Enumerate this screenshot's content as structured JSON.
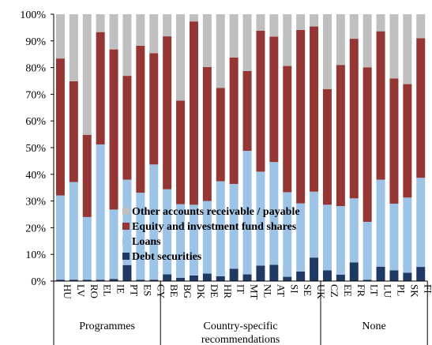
{
  "chart_data": {
    "type": "bar",
    "stacked": true,
    "percent": true,
    "ylim": [
      0,
      100
    ],
    "yticks": [
      "0%",
      "10%",
      "20%",
      "30%",
      "40%",
      "50%",
      "60%",
      "70%",
      "80%",
      "90%",
      "100%"
    ],
    "categories": [
      "HU",
      "LV",
      "RO",
      "EL",
      "IE",
      "PT",
      "ES",
      "CY",
      "BE",
      "BG",
      "DK",
      "DE",
      "HR",
      "IT",
      "MT",
      "NL",
      "AT",
      "SI",
      "SE",
      "UK",
      "CZ",
      "EE",
      "FR",
      "LT",
      "LU",
      "PL",
      "SK",
      "FI"
    ],
    "groups": [
      {
        "label": "Programmes",
        "start": 0,
        "count": 8
      },
      {
        "label": "Country-specific recommendations",
        "lines": [
          "Country-specific",
          "recommendations"
        ],
        "start": 8,
        "count": 12
      },
      {
        "label": "None",
        "start": 20,
        "count": 8
      }
    ],
    "series": [
      {
        "name": "Debt securities",
        "color": "#1f3864",
        "values": [
          0.5,
          0.5,
          0.5,
          0.5,
          0.8,
          6,
          0.5,
          0.5,
          2.5,
          1.2,
          2.1,
          2.8,
          1.8,
          4.6,
          2.5,
          5.8,
          6.1,
          1.6,
          3.6,
          8.8,
          4,
          2.4,
          7,
          0.5,
          5.4,
          4,
          3.1,
          5.3
        ]
      },
      {
        "name": "Loans",
        "color": "#9dc3e6",
        "values": [
          31.6,
          36.6,
          23.5,
          50.7,
          26,
          32,
          32.6,
          43.2,
          31.9,
          27.6,
          26.5,
          27.2,
          35.6,
          31.8,
          46.3,
          35.2,
          38.5,
          31.7,
          25.5,
          24.7,
          24.6,
          25.7,
          24,
          21.7,
          32.6,
          25,
          28.2,
          33.4
        ]
      },
      {
        "name": "Equity and investment fund shares",
        "color": "#943634",
        "values": [
          51.3,
          37.8,
          30.8,
          42.1,
          60,
          38.9,
          55.1,
          41.7,
          57.3,
          38.8,
          68.7,
          50.2,
          35,
          47.4,
          29.9,
          52.8,
          47,
          47.3,
          65,
          61.9,
          43.3,
          52.9,
          59.8,
          57.9,
          55.6,
          46.9,
          42.5,
          52.3
        ]
      },
      {
        "name": "Other accounts receivable / payable",
        "color": "#bfbfbf",
        "values": [
          16.6,
          25.1,
          45.2,
          6.7,
          13.2,
          23.1,
          11.8,
          14.6,
          8.3,
          32.4,
          2.7,
          19.8,
          27.6,
          16.2,
          21.3,
          6.2,
          8.4,
          19.4,
          5.9,
          4.6,
          28.1,
          19,
          9.2,
          19.9,
          6.4,
          24.1,
          26.2,
          9
        ]
      }
    ],
    "legend_order": [
      "Other accounts receivable / payable",
      "Equity and investment fund shares",
      "Loans",
      "Debt securities"
    ],
    "legend_position": "lower-center, inside plot",
    "grid": false
  }
}
